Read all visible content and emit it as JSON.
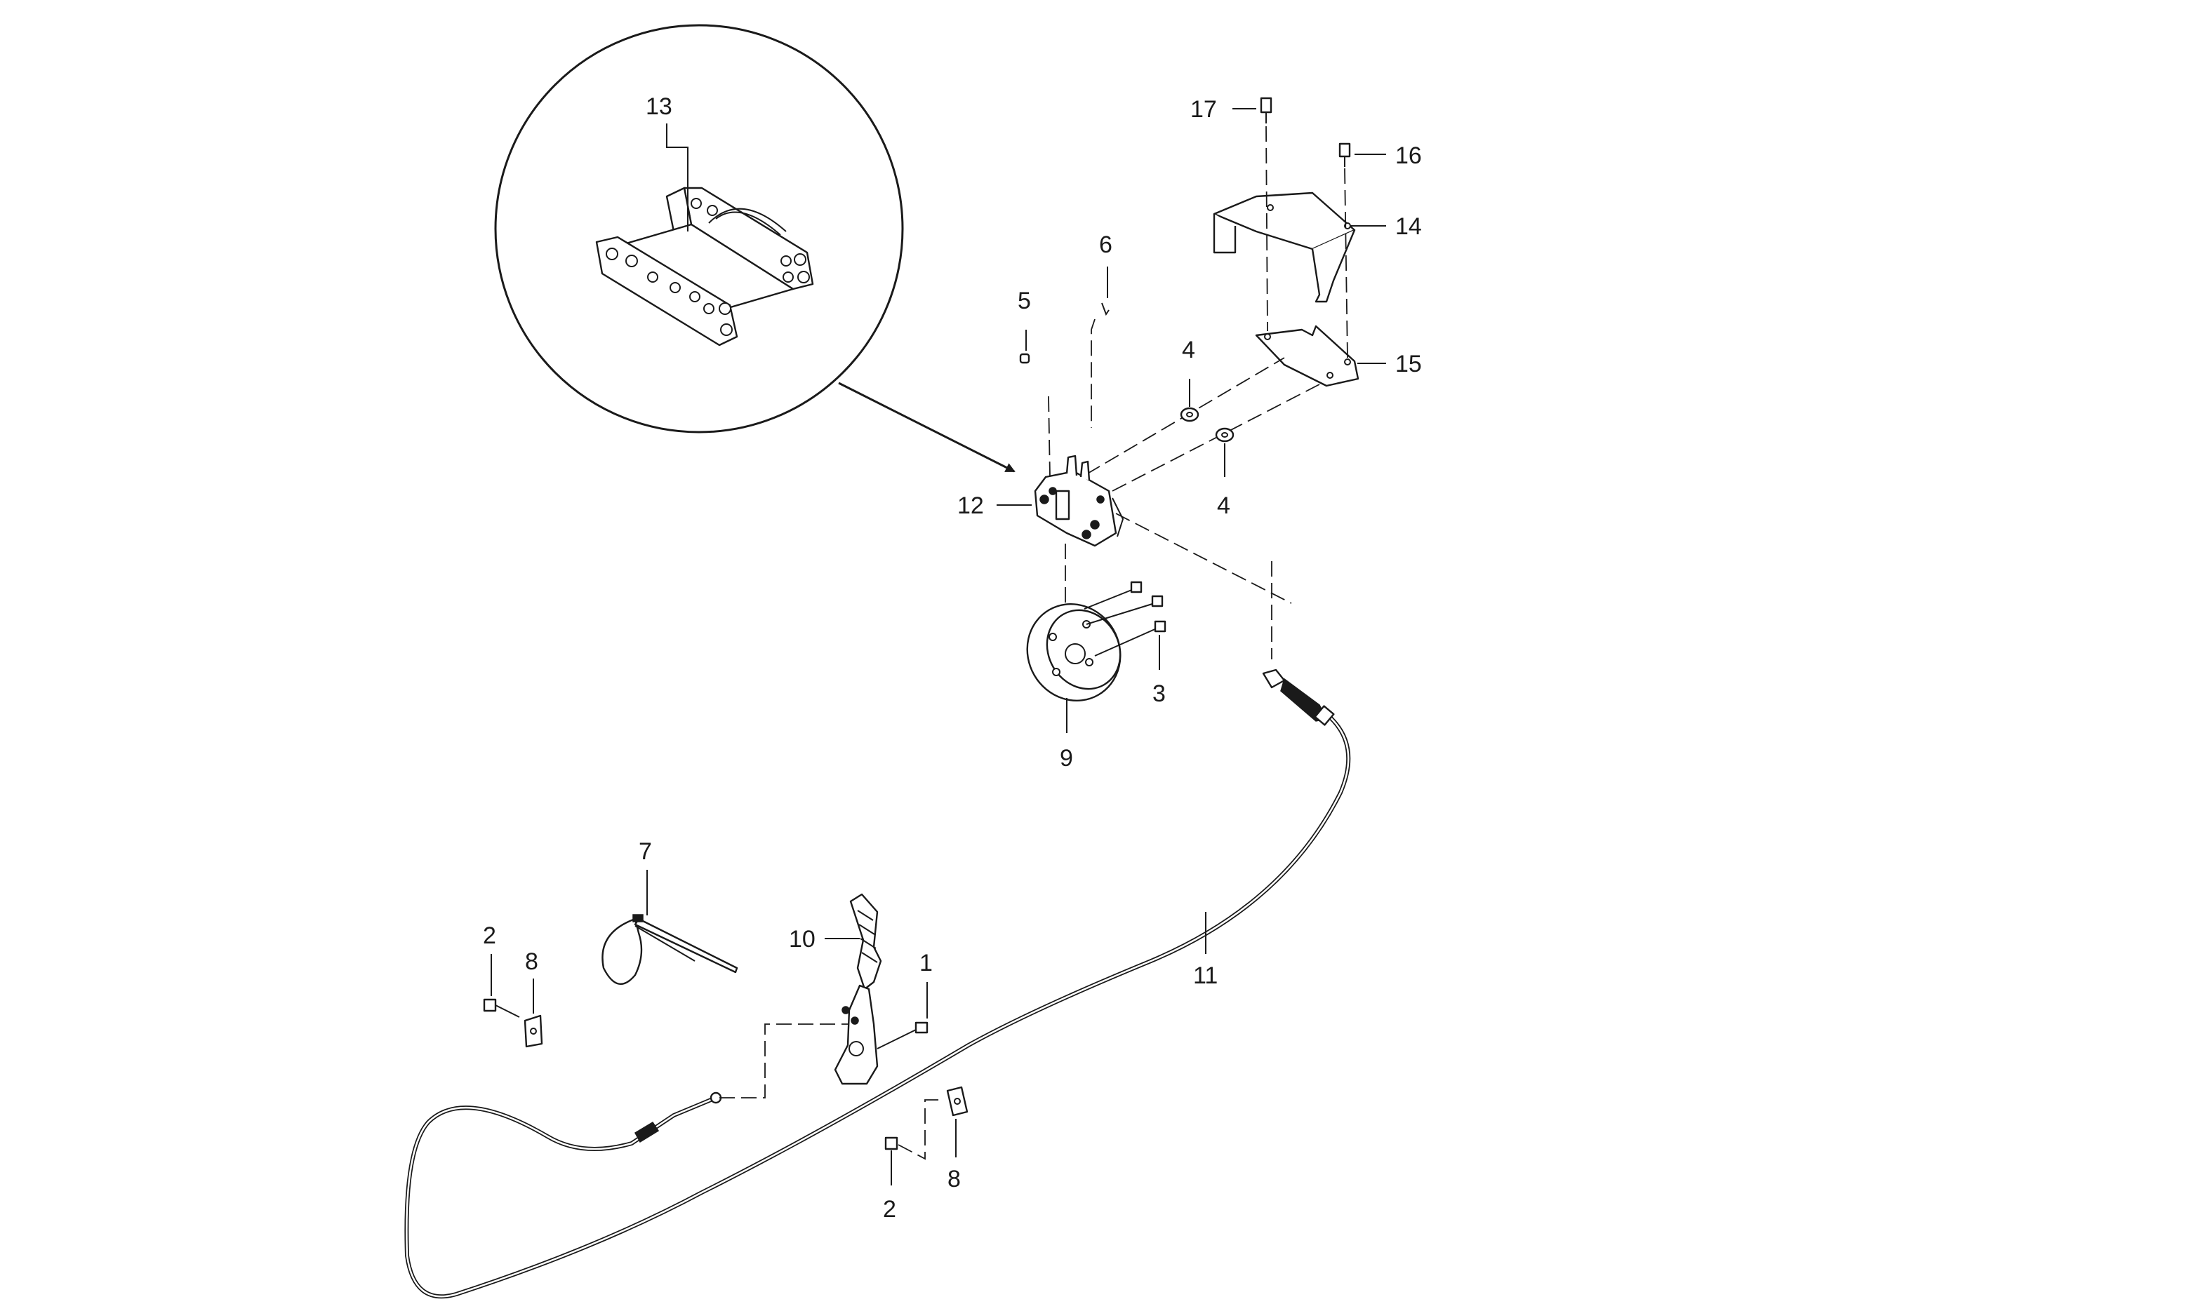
{
  "diagram": {
    "callouts": {
      "c1": "1",
      "c2a": "2",
      "c2b": "2",
      "c3": "3",
      "c4a": "4",
      "c4b": "4",
      "c5": "5",
      "c6": "6",
      "c7": "7",
      "c8a": "8",
      "c8b": "8",
      "c9": "9",
      "c10": "10",
      "c11": "11",
      "c12": "12",
      "c13": "13",
      "c14": "14",
      "c15": "15",
      "c16": "16",
      "c17": "17"
    },
    "icons": {
      "detail": "magnified-detail-circle",
      "arrow": "detail-pointer-arrow"
    },
    "colors": {
      "line": "#1a1a1a",
      "background": "#ffffff"
    }
  }
}
